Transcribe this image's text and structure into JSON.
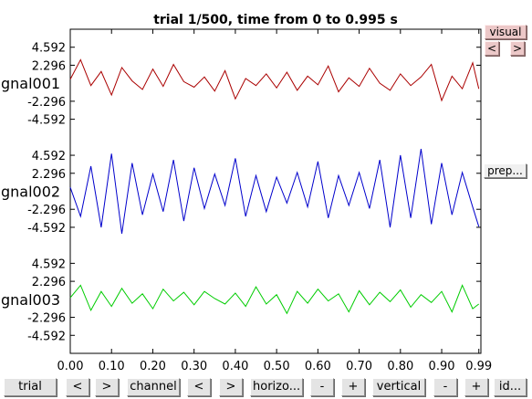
{
  "chart_data": {
    "type": "line",
    "title": "trial 1/500, time from 0 to 0.995 s",
    "x_ticks": [
      "0.00",
      "0.10",
      "0.20",
      "0.30",
      "0.40",
      "0.50",
      "0.60",
      "0.70",
      "0.80",
      "0.90",
      "0.99"
    ],
    "xlim": [
      0,
      0.995
    ],
    "grid": false,
    "series": [
      {
        "name": "gnal001",
        "color": "#aa0000",
        "y_ticks": [
          "4.592",
          "2.296",
          "-2.296",
          "-4.592"
        ],
        "ylim": [
          -6.888,
          6.888
        ],
        "x": [
          0,
          0.025,
          0.05,
          0.075,
          0.1,
          0.125,
          0.15,
          0.175,
          0.2,
          0.225,
          0.25,
          0.275,
          0.3,
          0.325,
          0.35,
          0.375,
          0.4,
          0.425,
          0.45,
          0.475,
          0.5,
          0.525,
          0.55,
          0.575,
          0.6,
          0.625,
          0.65,
          0.675,
          0.7,
          0.725,
          0.75,
          0.775,
          0.8,
          0.825,
          0.85,
          0.875,
          0.9,
          0.925,
          0.95,
          0.975,
          0.99
        ],
        "y": [
          0.5,
          3.0,
          -0.3,
          1.5,
          -1.5,
          2.0,
          0.3,
          -0.8,
          1.8,
          -0.4,
          2.4,
          0.2,
          -0.5,
          0.8,
          -1.0,
          1.6,
          -2.0,
          0.6,
          -0.3,
          1.2,
          -0.6,
          1.4,
          -0.9,
          0.9,
          -0.2,
          2.2,
          -1.1,
          0.7,
          -0.4,
          1.9,
          0.0,
          -0.9,
          1.2,
          -0.3,
          0.8,
          2.4,
          -2.2,
          0.9,
          -0.7,
          2.6,
          -0.7
        ]
      },
      {
        "name": "gnal002",
        "color": "#0000cc",
        "y_ticks": [
          "4.592",
          "2.296",
          "-2.296",
          "-4.592"
        ],
        "ylim": [
          -6.888,
          6.888
        ],
        "x": [
          0,
          0.025,
          0.05,
          0.075,
          0.1,
          0.125,
          0.15,
          0.175,
          0.2,
          0.225,
          0.25,
          0.275,
          0.3,
          0.325,
          0.35,
          0.375,
          0.4,
          0.425,
          0.45,
          0.475,
          0.5,
          0.525,
          0.55,
          0.575,
          0.6,
          0.625,
          0.65,
          0.675,
          0.7,
          0.725,
          0.75,
          0.775,
          0.8,
          0.825,
          0.85,
          0.875,
          0.9,
          0.925,
          0.95,
          0.975,
          0.99
        ],
        "y": [
          0.5,
          -3.2,
          3.2,
          -4.6,
          4.8,
          -5.4,
          3.6,
          -3.0,
          2.2,
          -2.6,
          4.0,
          -3.8,
          3.0,
          -2.2,
          2.2,
          -1.8,
          4.2,
          -3.2,
          2.0,
          -2.6,
          1.8,
          -1.5,
          2.4,
          -2.0,
          3.8,
          -3.4,
          2.0,
          -1.8,
          2.4,
          -2.2,
          4.0,
          -4.6,
          4.6,
          -3.4,
          5.4,
          -4.2,
          3.6,
          -3.0,
          2.4,
          -2.0,
          -4.5
        ]
      },
      {
        "name": "gnal003",
        "color": "#00cc00",
        "y_ticks": [
          "4.592",
          "2.296",
          "-2.296",
          "-4.592"
        ],
        "ylim": [
          -6.888,
          6.888
        ],
        "x": [
          0,
          0.025,
          0.05,
          0.075,
          0.1,
          0.125,
          0.15,
          0.175,
          0.2,
          0.225,
          0.25,
          0.275,
          0.3,
          0.325,
          0.35,
          0.375,
          0.4,
          0.425,
          0.45,
          0.475,
          0.5,
          0.525,
          0.55,
          0.575,
          0.6,
          0.625,
          0.65,
          0.675,
          0.7,
          0.725,
          0.75,
          0.775,
          0.8,
          0.825,
          0.85,
          0.875,
          0.9,
          0.925,
          0.95,
          0.975,
          0.99
        ],
        "y": [
          0.2,
          1.8,
          -1.4,
          1.0,
          -0.9,
          1.4,
          -0.5,
          0.7,
          -1.2,
          1.3,
          -0.2,
          0.9,
          -0.7,
          1.0,
          0.1,
          -0.6,
          0.8,
          -0.9,
          1.6,
          -0.6,
          0.6,
          -1.8,
          1.0,
          -0.5,
          1.3,
          -0.2,
          0.7,
          -1.6,
          1.1,
          -0.7,
          0.9,
          -0.3,
          1.2,
          -1.0,
          0.6,
          -0.4,
          1.0,
          -1.6,
          1.8,
          -1.2,
          -0.6
        ]
      }
    ]
  },
  "controls": {
    "trial": "trial",
    "trial_prev": "<",
    "trial_next": ">",
    "channel": "channel",
    "channel_prev": "<",
    "channel_next": ">",
    "horizontal": "horizo...",
    "horizontal_minus": "-",
    "horizontal_plus": "+",
    "vertical": "vertical",
    "vertical_minus": "-",
    "vertical_plus": "+",
    "identify": "id...",
    "visual": "visual",
    "visual_prev": "<",
    "visual_next": ">",
    "preproc": "prep..."
  }
}
